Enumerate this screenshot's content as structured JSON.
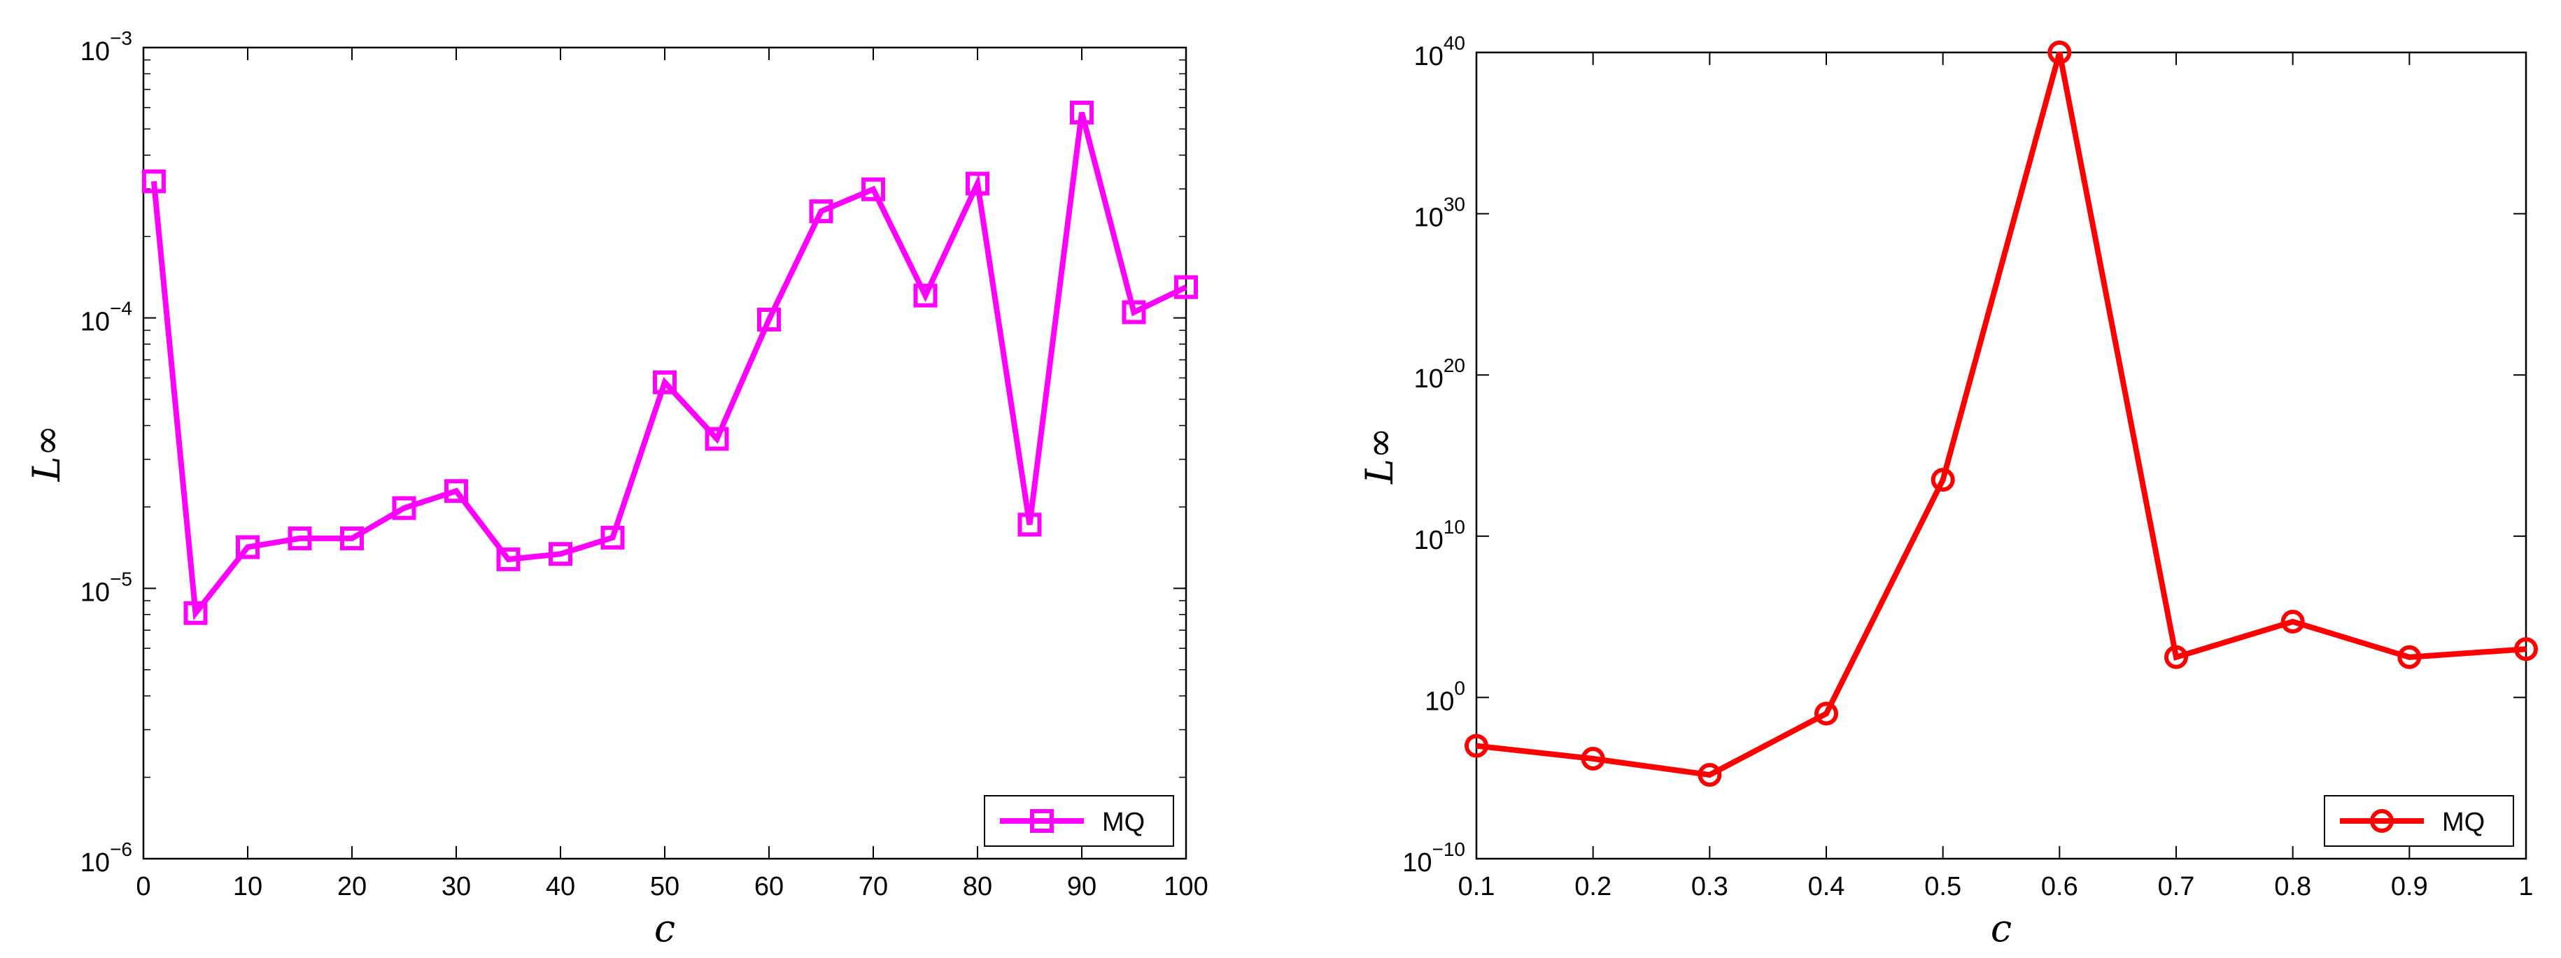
{
  "chart_data": [
    {
      "type": "line",
      "xlabel": "c",
      "ylabel": "L∞",
      "yscale": "log",
      "xlim": [
        0,
        100
      ],
      "ylim_exponent": [
        -6,
        -3
      ],
      "xticks": [
        0,
        10,
        20,
        30,
        40,
        50,
        60,
        70,
        80,
        90,
        100
      ],
      "xtick_labels": [
        "0",
        "10",
        "20",
        "30",
        "40",
        "50",
        "60",
        "70",
        "80",
        "90",
        "100"
      ],
      "yticks_exponent": [
        -6,
        -5,
        -4,
        -3
      ],
      "ytick_base": "10",
      "ytick_exponent_labels": [
        "−6",
        "−5",
        "−4",
        "−3"
      ],
      "legend_placement": "bottom-right",
      "series": [
        {
          "name": "MQ",
          "color": "#ff00ff",
          "marker": "square",
          "x": [
            1,
            5,
            10,
            15,
            20,
            25,
            30,
            35,
            40,
            45,
            50,
            55,
            60,
            65,
            70,
            75,
            80,
            85,
            90,
            95,
            100
          ],
          "y": [
            0.00032,
            8.1e-06,
            1.42e-05,
            1.53e-05,
            1.53e-05,
            1.98e-05,
            2.29e-05,
            1.28e-05,
            1.34e-05,
            1.54e-05,
            5.78e-05,
            3.57e-05,
            9.86e-05,
            0.000248,
            0.000299,
            0.000121,
            0.000314,
            1.72e-05,
            0.000575,
            0.000105,
            0.00013
          ]
        }
      ]
    },
    {
      "type": "line",
      "xlabel": "c",
      "ylabel": "L∞",
      "yscale": "log",
      "xlim": [
        0.1,
        1
      ],
      "ylim_exponent": [
        -10,
        40
      ],
      "xticks": [
        0.1,
        0.2,
        0.3,
        0.4,
        0.5,
        0.6,
        0.7,
        0.8,
        0.9,
        1.0
      ],
      "xtick_labels": [
        "0.1",
        "0.2",
        "0.3",
        "0.4",
        "0.5",
        "0.6",
        "0.7",
        "0.8",
        "0.9",
        "1"
      ],
      "yticks_exponent": [
        -10,
        0,
        10,
        20,
        30,
        40
      ],
      "ytick_base": "10",
      "ytick_exponent_labels": [
        "−10",
        "0",
        "10",
        "20",
        "30",
        "40"
      ],
      "legend_placement": "bottom-right",
      "series": [
        {
          "name": "MQ",
          "color": "#ff0000",
          "marker": "circle",
          "x": [
            0.1,
            0.2,
            0.3,
            0.4,
            0.5,
            0.6,
            0.7,
            0.8,
            0.9,
            1.0
          ],
          "y_log10": [
            -3.0,
            -3.8,
            -4.8,
            -1.0,
            13.5,
            40,
            2.5,
            4.7,
            2.5,
            3.0
          ]
        }
      ]
    }
  ]
}
